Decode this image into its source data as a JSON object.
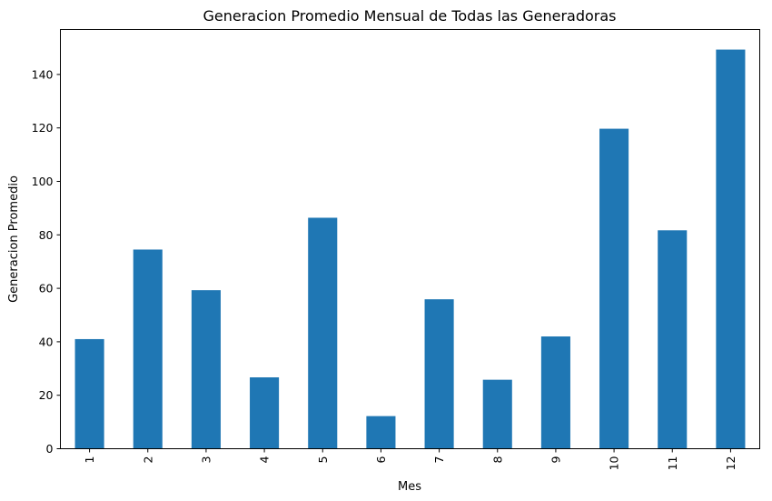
{
  "colors": {
    "bar": "#1f77b4",
    "background": "#ffffff",
    "axis": "#000000"
  },
  "chart_data": {
    "type": "bar",
    "title": "Generacion Promedio Mensual de Todas las Generadoras",
    "xlabel": "Mes",
    "ylabel": "Generacion Promedio",
    "categories": [
      "1",
      "2",
      "3",
      "4",
      "5",
      "6",
      "7",
      "8",
      "9",
      "10",
      "11",
      "12"
    ],
    "values": [
      41,
      74.5,
      59.3,
      26.7,
      86.4,
      12.2,
      55.9,
      25.8,
      42,
      119.7,
      81.7,
      149.3
    ],
    "ylim": [
      0,
      156.8
    ],
    "yticks": [
      "0",
      "20",
      "40",
      "60",
      "80",
      "100",
      "120",
      "140"
    ],
    "xtick_rotation": "vertical",
    "grid": false,
    "legend": "none"
  }
}
